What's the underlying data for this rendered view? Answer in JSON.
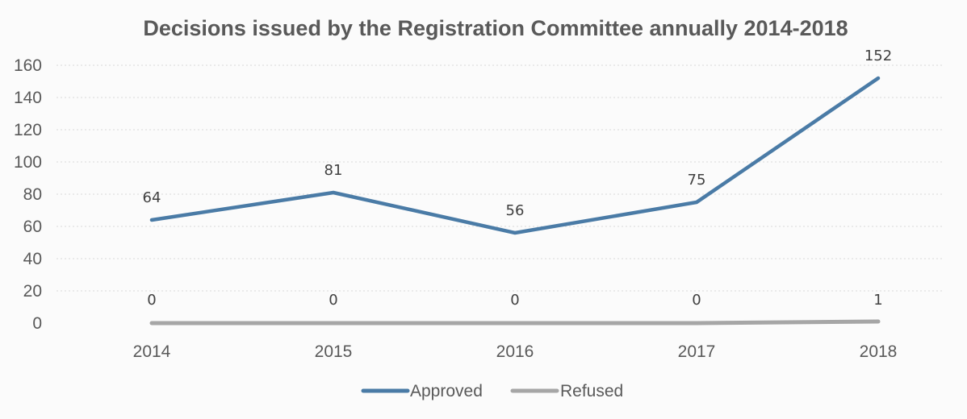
{
  "chart_data": {
    "type": "line",
    "title": "Decisions issued by the Registration Committee annually 2014-2018",
    "categories": [
      "2014",
      "2015",
      "2016",
      "2017",
      "2018"
    ],
    "series": [
      {
        "name": "Approved",
        "values": [
          64,
          81,
          56,
          75,
          152
        ],
        "color": "#4a7ba6"
      },
      {
        "name": "Refused",
        "values": [
          0,
          0,
          0,
          0,
          1
        ],
        "color": "#a6a6a6"
      }
    ],
    "ylim": [
      0,
      160
    ],
    "yticks": [
      0,
      20,
      40,
      60,
      80,
      100,
      120,
      140,
      160
    ],
    "xlabel": "",
    "ylabel": "",
    "grid": true,
    "legend": "bottom",
    "data_labels": true
  }
}
